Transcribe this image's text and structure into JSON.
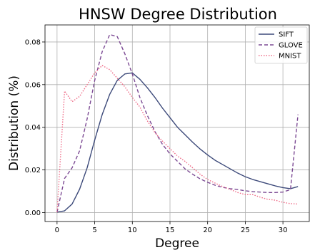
{
  "chart_data": {
    "type": "line",
    "title": "HNSW Degree Distribution",
    "xlabel": "Degree",
    "ylabel": "Distribution (%)",
    "xlim": [
      -1.6,
      33.5
    ],
    "ylim": [
      -0.0042,
      0.088
    ],
    "xticks": [
      0,
      5,
      10,
      15,
      20,
      25,
      30
    ],
    "yticks": [
      0.0,
      0.02,
      0.04,
      0.06,
      0.08
    ],
    "ytick_labels": [
      "0.00",
      "0.02",
      "0.04",
      "0.06",
      "0.08"
    ],
    "grid": true,
    "legend_position": "top-right",
    "series": [
      {
        "name": "SIFT",
        "color": "#3d4a7a",
        "dash": "solid",
        "x": [
          0,
          1,
          2,
          3,
          4,
          5,
          6,
          7,
          8,
          9,
          10,
          11,
          12,
          13,
          14,
          15,
          16,
          17,
          18,
          19,
          20,
          21,
          22,
          23,
          24,
          25,
          26,
          27,
          28,
          29,
          30,
          31,
          32
        ],
        "y": [
          0.0002,
          0.0008,
          0.004,
          0.011,
          0.021,
          0.034,
          0.046,
          0.0555,
          0.062,
          0.065,
          0.0655,
          0.0625,
          0.0585,
          0.054,
          0.049,
          0.0445,
          0.04,
          0.0365,
          0.033,
          0.0298,
          0.027,
          0.0245,
          0.0225,
          0.0205,
          0.0185,
          0.0168,
          0.0155,
          0.0145,
          0.0135,
          0.0125,
          0.0117,
          0.0112,
          0.0122
        ]
      },
      {
        "name": "GLOVE",
        "color": "#7c4a94",
        "dash": "dashed",
        "x": [
          0,
          1,
          2,
          3,
          4,
          5,
          6,
          7,
          8,
          9,
          10,
          11,
          12,
          13,
          14,
          15,
          16,
          17,
          18,
          19,
          20,
          21,
          22,
          23,
          24,
          25,
          26,
          27,
          28,
          29,
          30,
          31,
          32
        ],
        "y": [
          0.0002,
          0.016,
          0.021,
          0.029,
          0.044,
          0.062,
          0.0755,
          0.0835,
          0.0825,
          0.0745,
          0.065,
          0.054,
          0.0455,
          0.038,
          0.032,
          0.0275,
          0.024,
          0.0205,
          0.018,
          0.0158,
          0.0142,
          0.0128,
          0.0118,
          0.0112,
          0.0108,
          0.0102,
          0.0098,
          0.0096,
          0.0094,
          0.0094,
          0.0096,
          0.0108,
          0.046
        ]
      },
      {
        "name": "MNIST",
        "color": "#ee6a86",
        "dash": "dotted",
        "x": [
          0,
          1,
          2,
          3,
          4,
          5,
          6,
          7,
          8,
          9,
          10,
          11,
          12,
          13,
          14,
          15,
          16,
          17,
          18,
          19,
          20,
          21,
          22,
          23,
          24,
          25,
          26,
          27,
          28,
          29,
          30,
          31,
          32
        ],
        "y": [
          0.0002,
          0.057,
          0.052,
          0.0545,
          0.06,
          0.0655,
          0.069,
          0.067,
          0.063,
          0.059,
          0.054,
          0.0495,
          0.043,
          0.0375,
          0.0335,
          0.03,
          0.0265,
          0.024,
          0.021,
          0.018,
          0.0155,
          0.0138,
          0.0122,
          0.0108,
          0.0094,
          0.0084,
          0.0084,
          0.0072,
          0.0062,
          0.0058,
          0.0048,
          0.0042,
          0.004
        ]
      }
    ]
  }
}
